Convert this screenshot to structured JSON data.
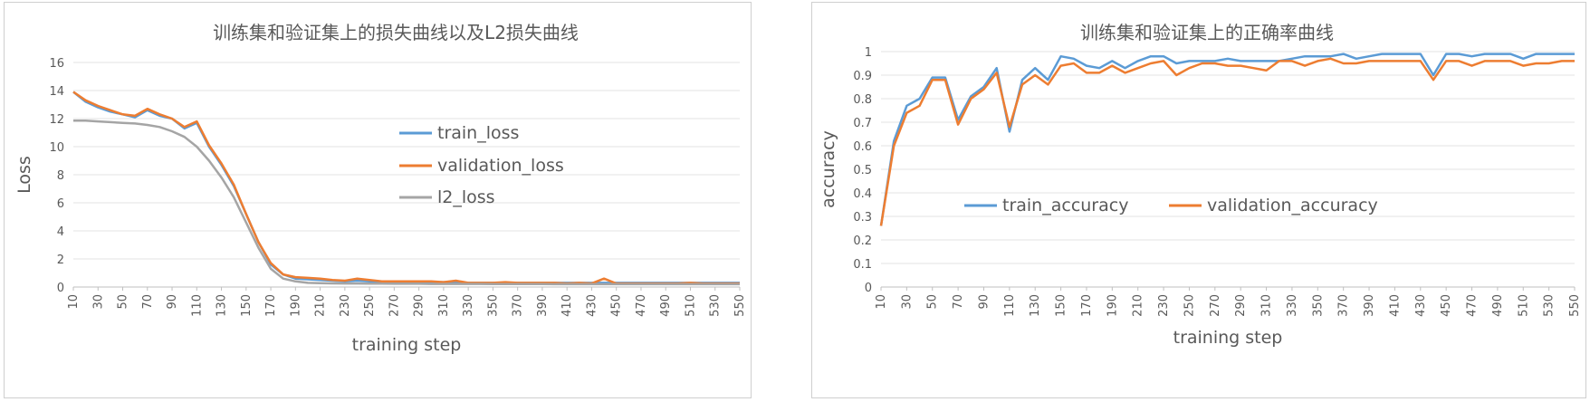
{
  "chart_data": [
    {
      "type": "line",
      "title": "训练集和验证集上的损失曲线以及L2损失曲线",
      "xlabel": "training  step",
      "ylabel": "Loss",
      "ylim": [
        0,
        16
      ],
      "yticks": [
        "0",
        "2",
        "4",
        "6",
        "8",
        "10",
        "12",
        "14",
        "16"
      ],
      "x": [
        10,
        20,
        30,
        40,
        50,
        60,
        70,
        80,
        90,
        100,
        110,
        120,
        130,
        140,
        150,
        160,
        170,
        180,
        190,
        200,
        210,
        220,
        230,
        240,
        250,
        260,
        270,
        280,
        290,
        300,
        310,
        320,
        330,
        340,
        350,
        360,
        370,
        380,
        390,
        400,
        410,
        420,
        430,
        440,
        450,
        460,
        470,
        480,
        490,
        500,
        510,
        520,
        530,
        540,
        550
      ],
      "xtick_labels": [
        "10",
        "30",
        "50",
        "70",
        "90",
        "110",
        "130",
        "150",
        "170",
        "190",
        "210",
        "230",
        "250",
        "270",
        "290",
        "310",
        "330",
        "350",
        "370",
        "390",
        "410",
        "430",
        "450",
        "470",
        "490",
        "510",
        "530",
        "550"
      ],
      "grid": true,
      "legend_position": "center-right",
      "series": [
        {
          "name": "train_loss",
          "color": "#5b9bd5",
          "values": [
            13.9,
            13.2,
            12.8,
            12.5,
            12.3,
            12.1,
            12.6,
            12.2,
            12.0,
            11.3,
            11.7,
            10.0,
            8.7,
            7.2,
            5.2,
            3.2,
            1.6,
            0.9,
            0.6,
            0.55,
            0.5,
            0.45,
            0.4,
            0.45,
            0.4,
            0.35,
            0.35,
            0.35,
            0.35,
            0.35,
            0.35,
            0.35,
            0.3,
            0.3,
            0.3,
            0.3,
            0.3,
            0.3,
            0.3,
            0.3,
            0.3,
            0.3,
            0.3,
            0.3,
            0.3,
            0.3,
            0.3,
            0.3,
            0.3,
            0.3,
            0.3,
            0.3,
            0.3,
            0.3,
            0.3
          ]
        },
        {
          "name": "validation_loss",
          "color": "#ed7d31",
          "values": [
            13.9,
            13.3,
            12.9,
            12.6,
            12.3,
            12.2,
            12.7,
            12.3,
            12.0,
            11.4,
            11.8,
            10.1,
            8.8,
            7.3,
            5.2,
            3.2,
            1.7,
            0.9,
            0.7,
            0.65,
            0.6,
            0.5,
            0.45,
            0.6,
            0.5,
            0.4,
            0.4,
            0.4,
            0.4,
            0.4,
            0.35,
            0.45,
            0.3,
            0.3,
            0.3,
            0.35,
            0.3,
            0.3,
            0.3,
            0.3,
            0.25,
            0.3,
            0.25,
            0.6,
            0.25,
            0.25,
            0.25,
            0.25,
            0.25,
            0.25,
            0.3,
            0.25,
            0.25,
            0.25,
            0.25
          ]
        },
        {
          "name": "l2_loss",
          "color": "#a5a5a5",
          "values": [
            11.85,
            11.85,
            11.8,
            11.75,
            11.7,
            11.65,
            11.55,
            11.4,
            11.1,
            10.7,
            10.0,
            9.0,
            7.8,
            6.4,
            4.6,
            2.8,
            1.3,
            0.6,
            0.4,
            0.3,
            0.28,
            0.26,
            0.25,
            0.25,
            0.24,
            0.24,
            0.23,
            0.23,
            0.23,
            0.22,
            0.22,
            0.22,
            0.22,
            0.22,
            0.21,
            0.21,
            0.21,
            0.21,
            0.21,
            0.2,
            0.2,
            0.2,
            0.2,
            0.2,
            0.2,
            0.2,
            0.2,
            0.2,
            0.2,
            0.2,
            0.2,
            0.2,
            0.2,
            0.2,
            0.2
          ]
        }
      ]
    },
    {
      "type": "line",
      "title": "训练集和验证集上的正确率曲线",
      "xlabel": "training step",
      "ylabel": "accuracy",
      "ylim": [
        0,
        1
      ],
      "yticks": [
        "0",
        "0.1",
        "0.2",
        "0.3",
        "0.4",
        "0.5",
        "0.6",
        "0.7",
        "0.8",
        "0.9",
        "1"
      ],
      "x": [
        10,
        20,
        30,
        40,
        50,
        60,
        70,
        80,
        90,
        100,
        110,
        120,
        130,
        140,
        150,
        160,
        170,
        180,
        190,
        200,
        210,
        220,
        230,
        240,
        250,
        260,
        270,
        280,
        290,
        300,
        310,
        320,
        330,
        340,
        350,
        360,
        370,
        380,
        390,
        400,
        410,
        420,
        430,
        440,
        450,
        460,
        470,
        480,
        490,
        500,
        510,
        520,
        530,
        540,
        550
      ],
      "xtick_labels": [
        "10",
        "30",
        "50",
        "70",
        "90",
        "110",
        "130",
        "150",
        "170",
        "190",
        "210",
        "230",
        "250",
        "270",
        "290",
        "310",
        "330",
        "350",
        "370",
        "390",
        "410",
        "430",
        "450",
        "470",
        "490",
        "510",
        "530",
        "550"
      ],
      "grid": true,
      "legend_position": "center-right",
      "series": [
        {
          "name": "train_accuracy",
          "color": "#5b9bd5",
          "values": [
            0.26,
            0.62,
            0.77,
            0.8,
            0.89,
            0.89,
            0.71,
            0.81,
            0.85,
            0.93,
            0.66,
            0.88,
            0.93,
            0.88,
            0.98,
            0.97,
            0.94,
            0.93,
            0.96,
            0.93,
            0.96,
            0.98,
            0.98,
            0.95,
            0.96,
            0.96,
            0.96,
            0.97,
            0.96,
            0.96,
            0.96,
            0.96,
            0.97,
            0.98,
            0.98,
            0.98,
            0.99,
            0.97,
            0.98,
            0.99,
            0.99,
            0.99,
            0.99,
            0.9,
            0.99,
            0.99,
            0.98,
            0.99,
            0.99,
            0.99,
            0.97,
            0.99,
            0.99,
            0.99,
            0.99
          ]
        },
        {
          "name": "validation_accuracy",
          "color": "#ed7d31",
          "values": [
            0.26,
            0.6,
            0.74,
            0.77,
            0.88,
            0.88,
            0.69,
            0.8,
            0.84,
            0.91,
            0.68,
            0.86,
            0.9,
            0.86,
            0.94,
            0.95,
            0.91,
            0.91,
            0.94,
            0.91,
            0.93,
            0.95,
            0.96,
            0.9,
            0.93,
            0.95,
            0.95,
            0.94,
            0.94,
            0.93,
            0.92,
            0.96,
            0.96,
            0.94,
            0.96,
            0.97,
            0.95,
            0.95,
            0.96,
            0.96,
            0.96,
            0.96,
            0.96,
            0.88,
            0.96,
            0.96,
            0.94,
            0.96,
            0.96,
            0.96,
            0.94,
            0.95,
            0.95,
            0.96,
            0.96
          ]
        }
      ]
    }
  ]
}
